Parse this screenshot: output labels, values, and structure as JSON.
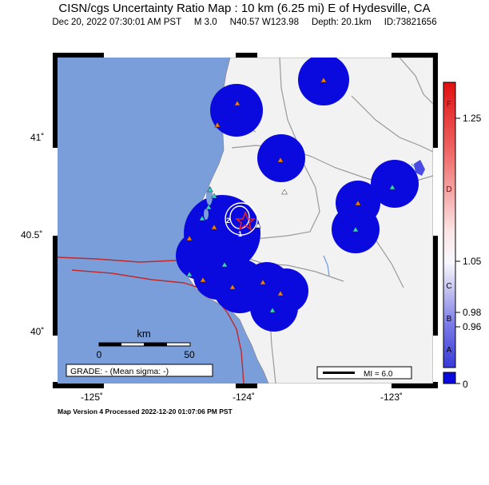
{
  "header": {
    "title": "CISN/cgs Uncertainty Ratio Map : 10 km (6.25 mi) E of Hydesville, CA",
    "date_time": "Dec 20, 2022 07:30:01 AM PST",
    "magnitude": "M 3.0",
    "location": "N40.57 W123.98",
    "depth": "Depth: 20.1km",
    "event_id": "ID:73821656"
  },
  "axes": {
    "lon_labels": [
      "-125˚",
      "-124˚",
      "-123˚"
    ],
    "lat_labels": [
      "41˚",
      "40.5˚",
      "40˚"
    ]
  },
  "scale_bar": {
    "unit": "km",
    "start": "0",
    "end": "50"
  },
  "grade_box": "GRADE: - (Mean sigma: -)",
  "mi_legend": "MI = 6.0",
  "colorbar": {
    "letters": [
      "F",
      "D",
      "C",
      "B",
      "A"
    ],
    "values": [
      "1.25",
      "1.05",
      "0.98",
      "0.96",
      "0"
    ]
  },
  "contour_labels": [
    "2",
    "1"
  ],
  "footer": "Map Version 4 Processed 2022-12-20 01:07:06 PM PST",
  "colors": {
    "ocean": "#7a9ed9",
    "land": "#f2f2f2",
    "low_ratio": "#0a0adf",
    "epicenter": "#e52222",
    "fault": "#c0282a"
  }
}
